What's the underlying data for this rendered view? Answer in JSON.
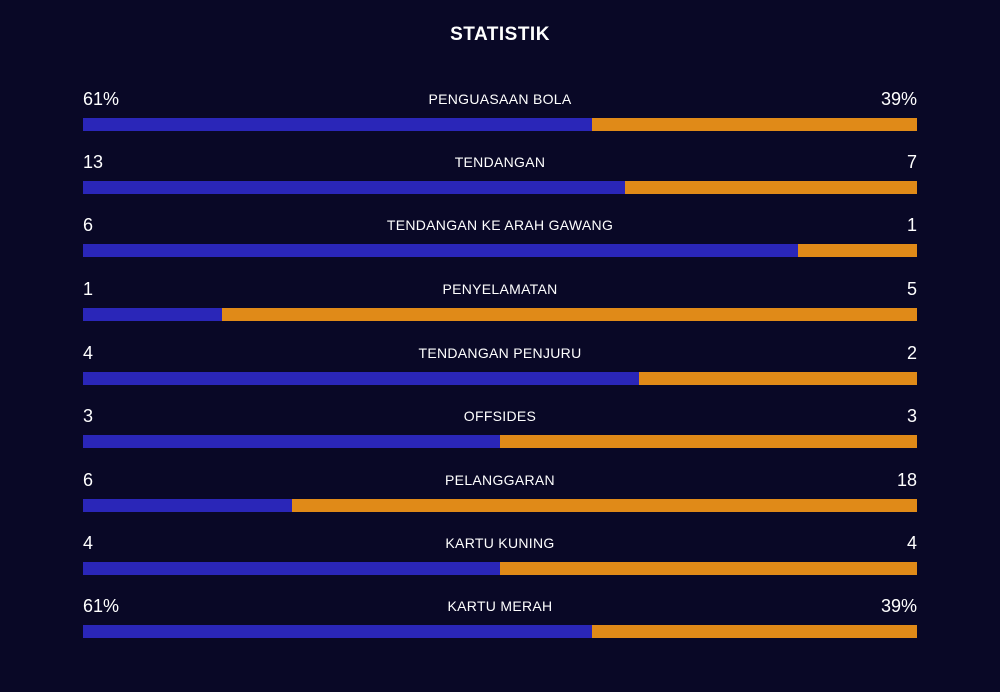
{
  "title": "STATISTIK",
  "colors": {
    "background": "#090826",
    "home": "#2a26b8",
    "away": "#e08a18",
    "text": "#ffffff"
  },
  "stats": [
    {
      "label": "PENGUASAAN BOLA",
      "left": "61%",
      "right": "39%",
      "left_share": 0.61
    },
    {
      "label": "TENDANGAN",
      "left": "13",
      "right": "7",
      "left_share": 0.65
    },
    {
      "label": "TENDANGAN KE ARAH GAWANG",
      "left": "6",
      "right": "1",
      "left_share": 0.857
    },
    {
      "label": "PENYELAMATAN",
      "left": "1",
      "right": "5",
      "left_share": 0.167
    },
    {
      "label": "TENDANGAN PENJURU",
      "left": "4",
      "right": "2",
      "left_share": 0.667
    },
    {
      "label": "OFFSIDES",
      "left": "3",
      "right": "3",
      "left_share": 0.5
    },
    {
      "label": "PELANGGARAN",
      "left": "6",
      "right": "18",
      "left_share": 0.25
    },
    {
      "label": "KARTU KUNING",
      "left": "4",
      "right": "4",
      "left_share": 0.5
    },
    {
      "label": "KARTU MERAH",
      "left": "61%",
      "right": "39%",
      "left_share": 0.61
    }
  ]
}
